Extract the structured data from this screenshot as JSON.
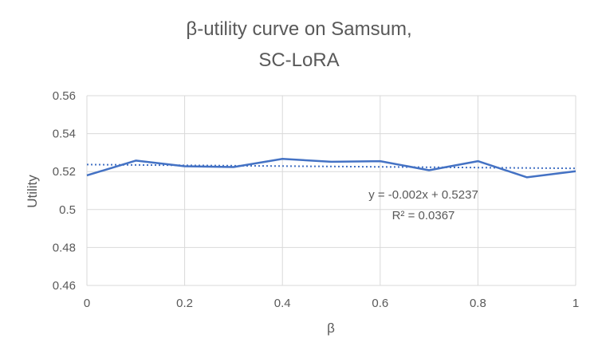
{
  "chart_data": {
    "type": "line",
    "title_lines": [
      "β-utility curve on Samsum,",
      "SC-LoRA"
    ],
    "xlabel": "β",
    "ylabel": "Utility",
    "xlim": [
      0,
      1
    ],
    "ylim": [
      0.46,
      0.56
    ],
    "x_ticks": [
      0,
      0.2,
      0.4,
      0.6,
      0.8,
      1
    ],
    "x_tick_labels": [
      "0",
      "0.2",
      "0.4",
      "0.6",
      "0.8",
      "1"
    ],
    "y_ticks": [
      0.46,
      0.48,
      0.5,
      0.52,
      0.54,
      0.56
    ],
    "y_tick_labels": [
      "0.46",
      "0.48",
      "0.5",
      "0.52",
      "0.54",
      "0.56"
    ],
    "grid": true,
    "series": [
      {
        "x": [
          0,
          0.1,
          0.2,
          0.3,
          0.4,
          0.5,
          0.6,
          0.7,
          0.8,
          0.9,
          1.0
        ],
        "values": [
          0.518,
          0.5258,
          0.5228,
          0.5224,
          0.5267,
          0.5252,
          0.5255,
          0.5207,
          0.5255,
          0.517,
          0.5202
        ],
        "color": "#4472C4"
      }
    ],
    "trendline": {
      "style": "dotted",
      "color": "#4472C4",
      "slope": -0.002,
      "intercept": 0.5237,
      "equation": "y = -0.002x + 0.5237",
      "r_squared": "R² = 0.0367"
    }
  }
}
